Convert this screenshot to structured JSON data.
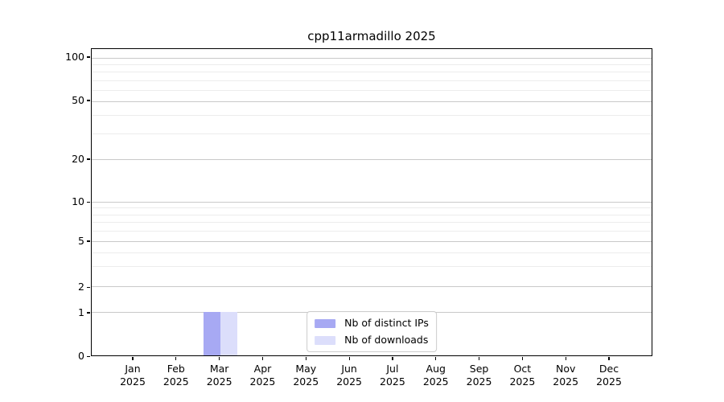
{
  "chart_data": {
    "type": "bar",
    "title": "cpp11armadillo 2025",
    "categories": [
      "Jan 2025",
      "Feb 2025",
      "Mar 2025",
      "Apr 2025",
      "May 2025",
      "Jun 2025",
      "Jul 2025",
      "Aug 2025",
      "Sep 2025",
      "Oct 2025",
      "Nov 2025",
      "Dec 2025"
    ],
    "series": [
      {
        "name": "Nb of distinct IPs",
        "color": "#a7a9f3",
        "values": [
          0,
          0,
          1,
          0,
          0,
          0,
          0,
          0,
          0,
          0,
          0,
          0
        ]
      },
      {
        "name": "Nb of downloads",
        "color": "#dcdefb",
        "values": [
          0,
          0,
          1,
          0,
          0,
          0,
          0,
          0,
          0,
          0,
          0,
          0
        ]
      }
    ],
    "xlabel": "",
    "ylabel": "",
    "yticks": [
      0,
      1,
      2,
      5,
      10,
      20,
      50,
      100
    ],
    "ylim": [
      0,
      110
    ],
    "yscale": "log-like",
    "grid": "horizontal",
    "legend_position": "bottom-center-inside"
  },
  "colors": {
    "bar_distinct_ips": "#a7a9f3",
    "bar_downloads": "#dcdefb",
    "grid_major": "#c9c9c9",
    "grid_minor": "#ececec",
    "axis": "#000000",
    "background": "#ffffff",
    "legend_border": "#cccccc"
  }
}
